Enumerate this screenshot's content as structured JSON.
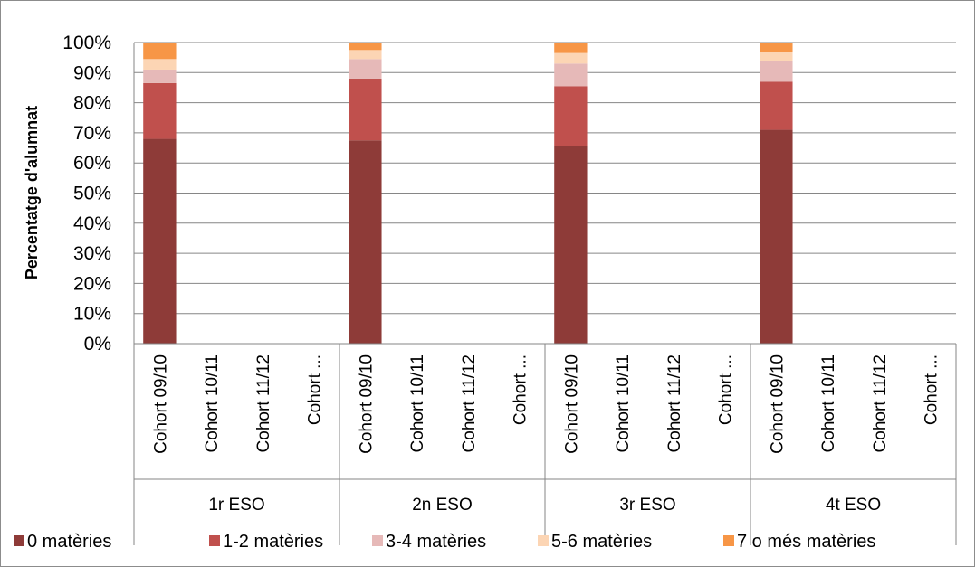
{
  "chart_data": {
    "type": "bar",
    "stacked": true,
    "percent": true,
    "ylabel": "Percentatge d'alumnat",
    "ylim": [
      0,
      100
    ],
    "yticks": [
      "0%",
      "10%",
      "20%",
      "30%",
      "40%",
      "50%",
      "60%",
      "70%",
      "80%",
      "90%",
      "100%"
    ],
    "grid": true,
    "legend_position": "bottom",
    "groups": [
      {
        "label": "1r ESO",
        "categories": [
          "Cohort 09/10",
          "Cohort 10/11",
          "Cohort 11/12",
          "Cohort ..."
        ]
      },
      {
        "label": "2n ESO",
        "categories": [
          "Cohort 09/10",
          "Cohort 10/11",
          "Cohort 11/12",
          "Cohort ..."
        ]
      },
      {
        "label": "3r ESO",
        "categories": [
          "Cohort 09/10",
          "Cohort 10/11",
          "Cohort 11/12",
          "Cohort ..."
        ]
      },
      {
        "label": "4t ESO",
        "categories": [
          "Cohort 09/10",
          "Cohort 10/11",
          "Cohort 11/12",
          "Cohort ..."
        ]
      }
    ],
    "series": [
      {
        "name": "0 matèries",
        "color": "#8e3b38",
        "values": [
          68,
          null,
          null,
          null,
          67.5,
          null,
          null,
          null,
          65.5,
          null,
          null,
          null,
          71,
          null,
          null,
          null
        ]
      },
      {
        "name": "1-2 matèries",
        "color": "#c0504d",
        "values": [
          18.5,
          null,
          null,
          null,
          20.5,
          null,
          null,
          null,
          20,
          null,
          null,
          null,
          16,
          null,
          null,
          null
        ]
      },
      {
        "name": "3-4 matèries",
        "color": "#e6b9b8",
        "values": [
          4.5,
          null,
          null,
          null,
          6.5,
          null,
          null,
          null,
          7.5,
          null,
          null,
          null,
          7,
          null,
          null,
          null
        ]
      },
      {
        "name": "5-6 matèries",
        "color": "#fcd5b4",
        "values": [
          3.5,
          null,
          null,
          null,
          3,
          null,
          null,
          null,
          3.5,
          null,
          null,
          null,
          3,
          null,
          null,
          null
        ]
      },
      {
        "name": "7 o més matèries",
        "color": "#f79646",
        "values": [
          5.5,
          null,
          null,
          null,
          2.5,
          null,
          null,
          null,
          3.5,
          null,
          null,
          null,
          3,
          null,
          null,
          null
        ]
      }
    ]
  }
}
